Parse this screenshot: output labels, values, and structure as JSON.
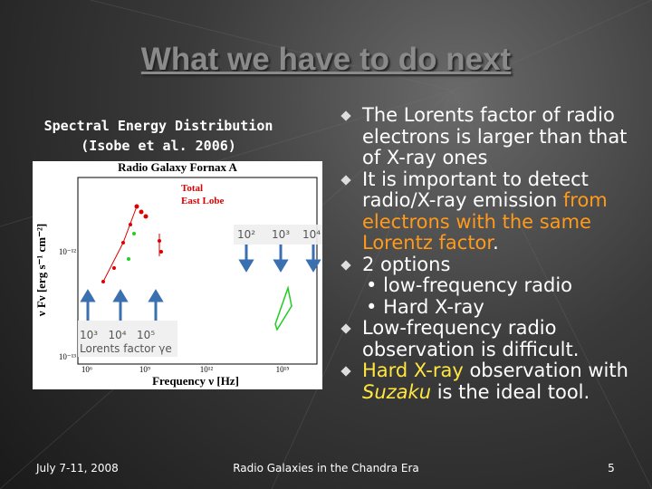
{
  "header": {
    "title": "What we have to do next"
  },
  "caption": {
    "lines": [
      "Spectral Energy Distribution",
      "(Isobe et al. 2006)"
    ]
  },
  "figure": {
    "title": "Radio Galaxy Fornax A",
    "legend": [
      "Total",
      "East Lobe"
    ],
    "x_label": "Frequency ν [Hz]",
    "y_label": "ν Fν [erg s⁻¹ cm⁻²]",
    "x_ticks": [
      "10⁶",
      "10⁹",
      "10¹²",
      "10¹⁵"
    ],
    "y_ticks": [
      "10⁻¹²",
      "10⁻¹³"
    ],
    "upper_factors": [
      "10²",
      "10³",
      "10⁴"
    ],
    "lower_factors": "10³   10⁴   10⁵",
    "lower_caption": "Lorents factor γe"
  },
  "bullets": [
    {
      "segments": [
        {
          "text": "The Lorents factor of radio electrons is  larger than that of X-ray ones"
        }
      ]
    },
    {
      "segments": [
        {
          "text": "It is important to detect radio/X-ray emission "
        },
        {
          "text": "from electrons with the same Lorentz factor",
          "color": "#ff9a1a"
        },
        {
          "text": "."
        }
      ]
    },
    {
      "segments": [
        {
          "text": "2 options"
        }
      ],
      "sub": [
        "low-frequency radio",
        "Hard X-ray"
      ]
    },
    {
      "segments": [
        {
          "text": "Low-frequency radio observation is difficult."
        }
      ]
    },
    {
      "segments": [
        {
          "text": "Hard X-ray",
          "color": "#ffe640"
        },
        {
          "text": " observation with "
        },
        {
          "text": "Suzaku",
          "color": "#ffe640",
          "italic": true
        },
        {
          "text": " is the ideal tool."
        }
      ]
    }
  ],
  "footer": {
    "date": "July 7-11, 2008",
    "event": "Radio Galaxies in the Chandra Era",
    "page": "5"
  }
}
